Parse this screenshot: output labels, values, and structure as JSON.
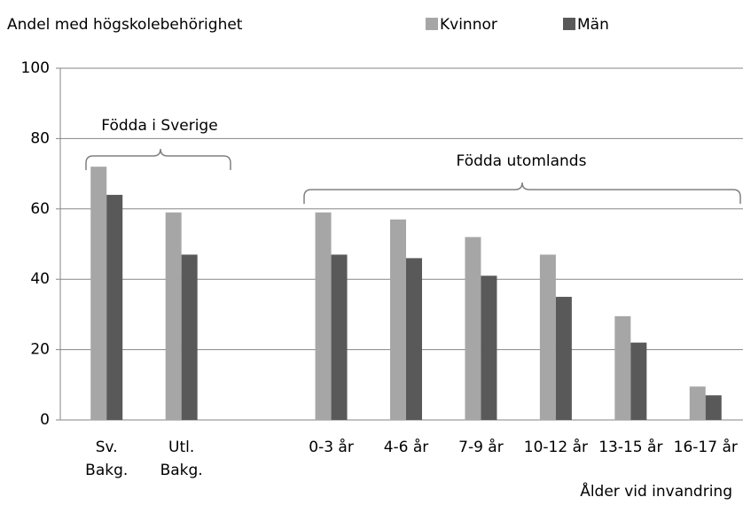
{
  "chart_data": {
    "type": "bar",
    "title": "Andel med högskolebehörighet",
    "x_label": "Ålder vid invandring",
    "categories": [
      [
        "Sv.",
        "Bakg."
      ],
      [
        "Utl.",
        "Bakg."
      ],
      null,
      "0-3 år",
      "4-6 år",
      "7-9 år",
      "10-12 år",
      "13-15 år",
      "16-17 år"
    ],
    "series": [
      {
        "name": "Kvinnor",
        "color": "#a6a6a6",
        "values": [
          72,
          59,
          null,
          59,
          57,
          52,
          47,
          29.5,
          9.5
        ]
      },
      {
        "name": "Män",
        "color": "#595959",
        "values": [
          64,
          47,
          null,
          47,
          46,
          41,
          35,
          22,
          7
        ]
      }
    ],
    "annotations": [
      "Födda i Sverige",
      "Födda utomlands"
    ],
    "ylim": [
      0,
      100
    ],
    "yticks": [
      0,
      20,
      40,
      60,
      80,
      100
    ],
    "grid": true,
    "legend": "top"
  }
}
